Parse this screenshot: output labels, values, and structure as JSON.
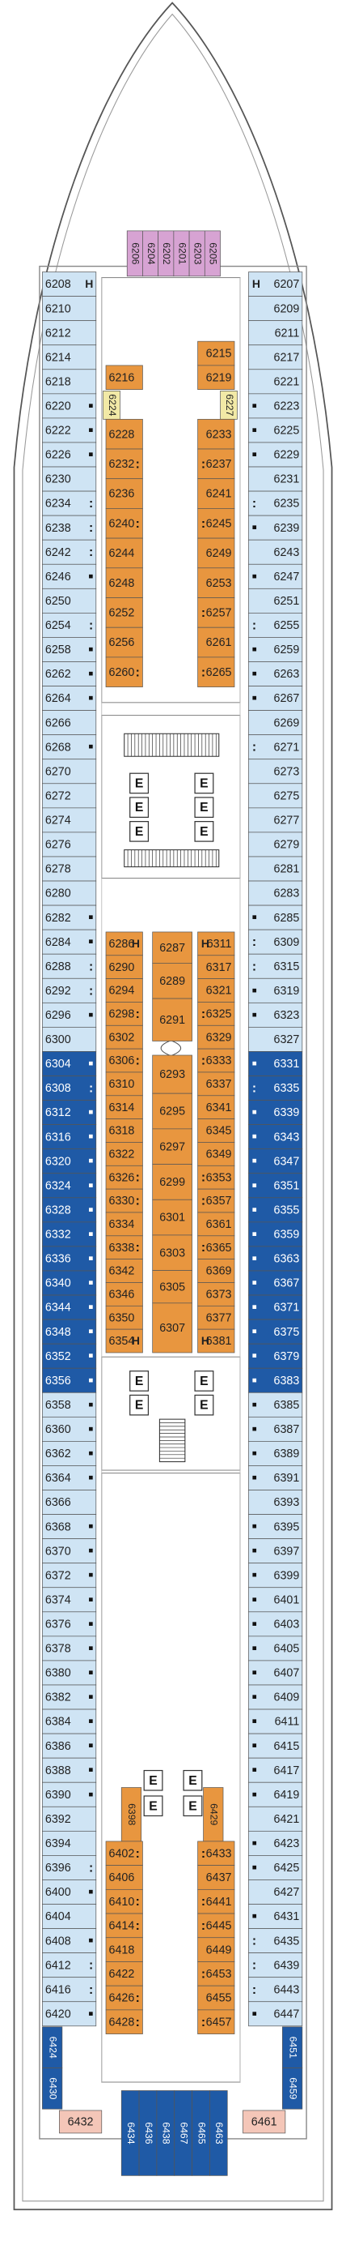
{
  "elevator_label": "E",
  "groups": {
    "bow_suites": {
      "color": "#d7a3d3",
      "text_color": "#222",
      "cabins": [
        {
          "n": "6206"
        },
        {
          "n": "6204"
        },
        {
          "n": "6202"
        },
        {
          "n": "6201"
        },
        {
          "n": "6203"
        },
        {
          "n": "6205"
        }
      ]
    },
    "port_outer_fore": {
      "color": "#cfe4f4",
      "text_color": "#222",
      "cabins": [
        {
          "n": "6208",
          "m": "H"
        },
        {
          "n": "6210"
        },
        {
          "n": "6212"
        },
        {
          "n": "6214"
        },
        {
          "n": "6218"
        },
        {
          "n": "6220",
          "m": "■"
        },
        {
          "n": "6222",
          "m": "■"
        },
        {
          "n": "6226",
          "m": "■"
        },
        {
          "n": "6230"
        },
        {
          "n": "6234",
          "m": ":"
        },
        {
          "n": "6238",
          "m": ":"
        },
        {
          "n": "6242",
          "m": ":"
        },
        {
          "n": "6246",
          "m": "■"
        },
        {
          "n": "6250"
        },
        {
          "n": "6254",
          "m": ":"
        },
        {
          "n": "6258",
          "m": "■"
        },
        {
          "n": "6262",
          "m": "■"
        },
        {
          "n": "6264",
          "m": "■"
        },
        {
          "n": "6266"
        },
        {
          "n": "6268",
          "m": "■"
        },
        {
          "n": "6270"
        },
        {
          "n": "6272"
        },
        {
          "n": "6274"
        },
        {
          "n": "6276"
        },
        {
          "n": "6278"
        },
        {
          "n": "6280"
        },
        {
          "n": "6282",
          "m": "■"
        },
        {
          "n": "6284",
          "m": "■"
        },
        {
          "n": "6288",
          "m": ":"
        },
        {
          "n": "6292",
          "m": ":"
        },
        {
          "n": "6296",
          "m": "■"
        },
        {
          "n": "6300"
        }
      ]
    },
    "port_outer_mid": {
      "color": "#1f5aa6",
      "text_color": "#ffffff",
      "cabins": [
        {
          "n": "6304",
          "m": "■"
        },
        {
          "n": "6308",
          "m": ":"
        },
        {
          "n": "6312",
          "m": "■"
        },
        {
          "n": "6316",
          "m": "■"
        },
        {
          "n": "6320",
          "m": "■"
        },
        {
          "n": "6324",
          "m": "■"
        },
        {
          "n": "6328",
          "m": "■"
        },
        {
          "n": "6332",
          "m": "■"
        },
        {
          "n": "6336",
          "m": "■"
        },
        {
          "n": "6340",
          "m": "■"
        },
        {
          "n": "6344",
          "m": "■"
        },
        {
          "n": "6348",
          "m": "■"
        },
        {
          "n": "6352",
          "m": "■"
        },
        {
          "n": "6356",
          "m": "■"
        }
      ]
    },
    "port_outer_aft": {
      "color": "#cfe4f4",
      "text_color": "#222",
      "cabins": [
        {
          "n": "6358",
          "m": "■"
        },
        {
          "n": "6360",
          "m": "■"
        },
        {
          "n": "6362",
          "m": "■"
        },
        {
          "n": "6364",
          "m": "■"
        },
        {
          "n": "6366"
        },
        {
          "n": "6368",
          "m": "■"
        },
        {
          "n": "6370",
          "m": "■"
        },
        {
          "n": "6372",
          "m": "■"
        },
        {
          "n": "6374",
          "m": "■"
        },
        {
          "n": "6376",
          "m": "■"
        },
        {
          "n": "6378",
          "m": "■"
        },
        {
          "n": "6380",
          "m": "■"
        },
        {
          "n": "6382",
          "m": "■"
        },
        {
          "n": "6384",
          "m": "■"
        },
        {
          "n": "6386",
          "m": "■"
        },
        {
          "n": "6388",
          "m": "■"
        },
        {
          "n": "6390",
          "m": "■"
        },
        {
          "n": "6392"
        },
        {
          "n": "6394"
        },
        {
          "n": "6396",
          "m": ":"
        },
        {
          "n": "6400",
          "m": "■"
        },
        {
          "n": "6404"
        },
        {
          "n": "6408",
          "m": "■"
        },
        {
          "n": "6412",
          "m": ":"
        },
        {
          "n": "6416",
          "m": ":"
        },
        {
          "n": "6420",
          "m": "■"
        }
      ]
    },
    "stbd_outer_fore": {
      "color": "#cfe4f4",
      "text_color": "#222",
      "cabins": [
        {
          "n": "6207",
          "m": "H"
        },
        {
          "n": "6209"
        },
        {
          "n": "6211"
        },
        {
          "n": "6217"
        },
        {
          "n": "6221"
        },
        {
          "n": "6223",
          "m": "■"
        },
        {
          "n": "6225",
          "m": "■"
        },
        {
          "n": "6229",
          "m": "■"
        },
        {
          "n": "6231"
        },
        {
          "n": "6235",
          "m": ":"
        },
        {
          "n": "6239",
          "m": "■"
        },
        {
          "n": "6243"
        },
        {
          "n": "6247",
          "m": "■"
        },
        {
          "n": "6251"
        },
        {
          "n": "6255",
          "m": ":"
        },
        {
          "n": "6259",
          "m": "■"
        },
        {
          "n": "6263",
          "m": "■"
        },
        {
          "n": "6267",
          "m": "■"
        },
        {
          "n": "6269"
        },
        {
          "n": "6271",
          "m": ":"
        },
        {
          "n": "6273"
        },
        {
          "n": "6275"
        },
        {
          "n": "6277"
        },
        {
          "n": "6279"
        },
        {
          "n": "6281"
        },
        {
          "n": "6283"
        },
        {
          "n": "6285",
          "m": "■"
        },
        {
          "n": "6309",
          "m": ":"
        },
        {
          "n": "6315",
          "m": ":"
        },
        {
          "n": "6319",
          "m": "■"
        },
        {
          "n": "6323",
          "m": "■"
        },
        {
          "n": "6327"
        }
      ]
    },
    "stbd_outer_mid": {
      "color": "#1f5aa6",
      "text_color": "#ffffff",
      "cabins": [
        {
          "n": "6331",
          "m": "■"
        },
        {
          "n": "6335",
          "m": ":"
        },
        {
          "n": "6339",
          "m": "■"
        },
        {
          "n": "6343",
          "m": "■"
        },
        {
          "n": "6347",
          "m": "■"
        },
        {
          "n": "6351",
          "m": "■"
        },
        {
          "n": "6355",
          "m": "■"
        },
        {
          "n": "6359",
          "m": "■"
        },
        {
          "n": "6363",
          "m": "■"
        },
        {
          "n": "6367",
          "m": "■"
        },
        {
          "n": "6371",
          "m": "■"
        },
        {
          "n": "6375",
          "m": "■"
        },
        {
          "n": "6379",
          "m": "■"
        },
        {
          "n": "6383",
          "m": "■"
        }
      ]
    },
    "stbd_outer_aft": {
      "color": "#cfe4f4",
      "text_color": "#222",
      "cabins": [
        {
          "n": "6385",
          "m": "■"
        },
        {
          "n": "6387",
          "m": "■"
        },
        {
          "n": "6389",
          "m": "■"
        },
        {
          "n": "6391",
          "m": "■"
        },
        {
          "n": "6393"
        },
        {
          "n": "6395",
          "m": "■"
        },
        {
          "n": "6397",
          "m": "■"
        },
        {
          "n": "6399",
          "m": "■"
        },
        {
          "n": "6401",
          "m": "■"
        },
        {
          "n": "6403",
          "m": "■"
        },
        {
          "n": "6405",
          "m": "■"
        },
        {
          "n": "6407",
          "m": "■"
        },
        {
          "n": "6409",
          "m": "■"
        },
        {
          "n": "6411",
          "m": "■"
        },
        {
          "n": "6415",
          "m": "■"
        },
        {
          "n": "6417",
          "m": "■"
        },
        {
          "n": "6419",
          "m": "■"
        },
        {
          "n": "6421"
        },
        {
          "n": "6423",
          "m": "■"
        },
        {
          "n": "6425",
          "m": "■"
        },
        {
          "n": "6427"
        },
        {
          "n": "6431",
          "m": "■"
        },
        {
          "n": "6435",
          "m": ":"
        },
        {
          "n": "6439",
          "m": ":"
        },
        {
          "n": "6443",
          "m": ":"
        },
        {
          "n": "6447",
          "m": "■"
        }
      ]
    },
    "fore_port_extra": {
      "color": "#e8963f",
      "text_color": "#222",
      "cabins": [
        {
          "n": "6216"
        }
      ]
    },
    "fore_stbd_extra": {
      "color": "#e8963f",
      "text_color": "#222",
      "cabins": [
        {
          "n": "6215"
        },
        {
          "n": "6219"
        }
      ]
    },
    "fore_yellow": {
      "color": "#f2e9a6",
      "text_color": "#222",
      "cabins": [
        {
          "n": "6224"
        },
        {
          "n": "6227"
        }
      ]
    },
    "fore_inner_port": {
      "color": "#e8963f",
      "text_color": "#222",
      "cabins": [
        {
          "n": "6228"
        },
        {
          "n": "6232",
          "m": ":"
        },
        {
          "n": "6236"
        },
        {
          "n": "6240",
          "m": ":"
        },
        {
          "n": "6244"
        },
        {
          "n": "6248"
        },
        {
          "n": "6252"
        },
        {
          "n": "6256"
        },
        {
          "n": "6260",
          "m": ":"
        }
      ]
    },
    "fore_inner_stbd": {
      "color": "#e8963f",
      "text_color": "#222",
      "cabins": [
        {
          "n": "6233"
        },
        {
          "n": "6237",
          "m": ":"
        },
        {
          "n": "6241"
        },
        {
          "n": "6245",
          "m": ":"
        },
        {
          "n": "6249"
        },
        {
          "n": "6253"
        },
        {
          "n": "6257",
          "m": ":"
        },
        {
          "n": "6261"
        },
        {
          "n": "6265",
          "m": ":"
        }
      ]
    },
    "mid_inner_port": {
      "color": "#e8963f",
      "text_color": "#222",
      "cabins": [
        {
          "n": "6286",
          "m": "H"
        },
        {
          "n": "6290"
        },
        {
          "n": "6294"
        },
        {
          "n": "6298",
          "m": ":"
        },
        {
          "n": "6302"
        },
        {
          "n": "6306",
          "m": ":"
        },
        {
          "n": "6310"
        },
        {
          "n": "6314"
        },
        {
          "n": "6318"
        },
        {
          "n": "6322"
        },
        {
          "n": "6326",
          "m": ":"
        },
        {
          "n": "6330",
          "m": ":"
        },
        {
          "n": "6334"
        },
        {
          "n": "6338",
          "m": ":"
        },
        {
          "n": "6342"
        },
        {
          "n": "6346"
        },
        {
          "n": "6350"
        },
        {
          "n": "6354",
          "m": "H"
        }
      ]
    },
    "mid_center": {
      "color": "#e8963f",
      "text_color": "#222",
      "cabins": [
        {
          "n": "6287"
        },
        {
          "n": "6289"
        },
        {
          "n": "6291"
        },
        {
          "n": "6293"
        },
        {
          "n": "6295"
        },
        {
          "n": "6297"
        },
        {
          "n": "6299"
        },
        {
          "n": "6301"
        },
        {
          "n": "6303"
        },
        {
          "n": "6305"
        },
        {
          "n": "6307"
        }
      ]
    },
    "mid_inner_stbd": {
      "color": "#e8963f",
      "text_color": "#222",
      "cabins": [
        {
          "n": "6311",
          "m": "H"
        },
        {
          "n": "6317"
        },
        {
          "n": "6321"
        },
        {
          "n": "6325",
          "m": ":"
        },
        {
          "n": "6329"
        },
        {
          "n": "6333",
          "m": ":"
        },
        {
          "n": "6337"
        },
        {
          "n": "6341"
        },
        {
          "n": "6345"
        },
        {
          "n": "6349"
        },
        {
          "n": "6353",
          "m": ":"
        },
        {
          "n": "6357",
          "m": ":"
        },
        {
          "n": "6361"
        },
        {
          "n": "6365",
          "m": ":"
        },
        {
          "n": "6369"
        },
        {
          "n": "6373"
        },
        {
          "n": "6377"
        },
        {
          "n": "6381",
          "m": "H"
        }
      ]
    },
    "aft_inner_port": {
      "color": "#e8963f",
      "text_color": "#222",
      "cabins": [
        {
          "n": "6398"
        },
        {
          "n": "6402",
          "m": ":"
        },
        {
          "n": "6406"
        },
        {
          "n": "6410",
          "m": ":"
        },
        {
          "n": "6414",
          "m": ":"
        },
        {
          "n": "6418"
        },
        {
          "n": "6422"
        },
        {
          "n": "6426",
          "m": ":"
        },
        {
          "n": "6428",
          "m": ":"
        }
      ]
    },
    "aft_inner_stbd": {
      "color": "#e8963f",
      "text_color": "#222",
      "cabins": [
        {
          "n": "6429"
        },
        {
          "n": "6433",
          "m": ":"
        },
        {
          "n": "6437"
        },
        {
          "n": "6441",
          "m": ":"
        },
        {
          "n": "6445",
          "m": ":"
        },
        {
          "n": "6449"
        },
        {
          "n": "6453",
          "m": ":"
        },
        {
          "n": "6455"
        },
        {
          "n": "6457",
          "m": ":"
        }
      ]
    },
    "stern_row": {
      "color": "#1f5aa6",
      "text_color": "#ffffff",
      "cabins": [
        {
          "n": "6434"
        },
        {
          "n": "6436"
        },
        {
          "n": "6438"
        },
        {
          "n": "6467"
        },
        {
          "n": "6465"
        },
        {
          "n": "6463"
        }
      ]
    },
    "stern_port": {
      "color": "#1f5aa6",
      "text_color": "#ffffff",
      "cabins": [
        {
          "n": "6424"
        },
        {
          "n": "6430"
        }
      ]
    },
    "stern_stbd": {
      "color": "#1f5aa6",
      "text_color": "#ffffff",
      "cabins": [
        {
          "n": "6451"
        },
        {
          "n": "6459"
        }
      ]
    },
    "stern_corners": {
      "color": "#f4c6b8",
      "text_color": "#222",
      "cabins": [
        {
          "n": "6432"
        },
        {
          "n": "6461"
        }
      ]
    }
  }
}
